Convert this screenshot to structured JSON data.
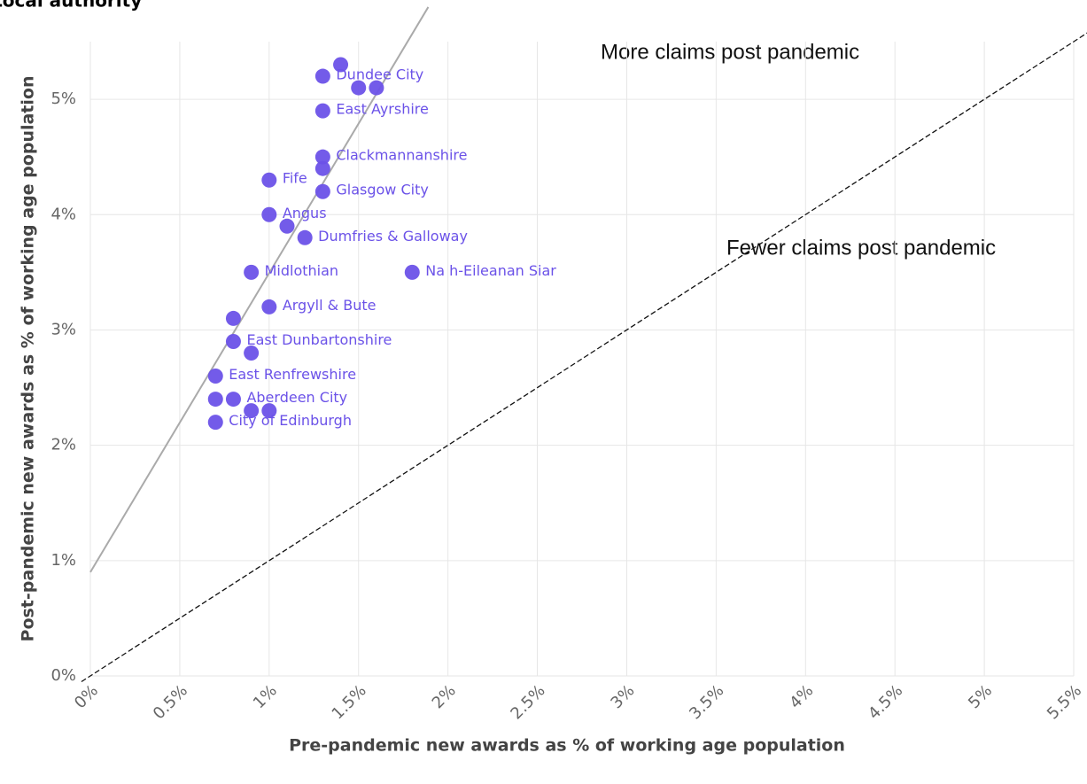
{
  "chart_data": {
    "type": "scatter",
    "title": "Local authority",
    "x_label": "Pre-pandemic new awards as % of working age population",
    "y_label": "Post-pandemic new awards as % of working age population",
    "annotations": [
      "More claims post pandemic",
      "Fewer claims post pandemic"
    ],
    "xlim": [
      0,
      5.5
    ],
    "ylim": [
      0,
      5.5
    ],
    "xticks": [
      {
        "value": 0,
        "label": "0%"
      },
      {
        "value": 0.5,
        "label": "0.5%"
      },
      {
        "value": 1,
        "label": "1%"
      },
      {
        "value": 1.5,
        "label": "1.5%"
      },
      {
        "value": 2,
        "label": "2%"
      },
      {
        "value": 2.5,
        "label": "2.5%"
      },
      {
        "value": 3,
        "label": "3%"
      },
      {
        "value": 3.5,
        "label": "3.5%"
      },
      {
        "value": 4,
        "label": "4%"
      },
      {
        "value": 4.5,
        "label": "4.5%"
      },
      {
        "value": 5,
        "label": "5%"
      },
      {
        "value": 5.5,
        "label": "5.5%"
      }
    ],
    "yticks": [
      {
        "value": 0,
        "label": "0%"
      },
      {
        "value": 1,
        "label": "1%"
      },
      {
        "value": 2,
        "label": "2%"
      },
      {
        "value": 3,
        "label": "3%"
      },
      {
        "value": 4,
        "label": "4%"
      },
      {
        "value": 5,
        "label": "5%"
      }
    ],
    "grid": true,
    "series": [
      {
        "color": "#6b52e8",
        "x": [
          1.4,
          1.3,
          1.5,
          1.6,
          1.3,
          1.3,
          1.3,
          1.0,
          1.3,
          1.0,
          1.1,
          1.2,
          0.9,
          1.8,
          1.0,
          0.8,
          0.8,
          0.9,
          0.7,
          0.7,
          0.8,
          0.9,
          1.0,
          0.7
        ],
        "values": [
          5.3,
          5.2,
          5.1,
          5.1,
          4.9,
          4.5,
          4.4,
          4.3,
          4.2,
          4.0,
          3.9,
          3.8,
          3.5,
          3.5,
          3.2,
          3.1,
          2.9,
          2.8,
          2.6,
          2.4,
          2.4,
          2.3,
          2.3,
          2.2
        ],
        "labels": [
          null,
          "Dundee City",
          null,
          null,
          "East Ayrshire",
          "Clackmannanshire",
          null,
          "Fife",
          "Glasgow City",
          "Angus",
          null,
          "Dumfries & Galloway",
          "Midlothian",
          "Na h-Eileanan Siar",
          "Argyll & Bute",
          null,
          "East Dunbartonshire",
          null,
          "East Renfrewshire",
          null,
          "Aberdeen City",
          null,
          null,
          "City of Edinburgh"
        ]
      }
    ],
    "trend_line": {
      "color": "#aaaaaa",
      "x": [
        0,
        1.89
      ],
      "values": [
        0.9,
        5.8
      ]
    },
    "parity_line": {
      "color": "#111111",
      "x": [
        -0.05,
        5.6
      ],
      "values": [
        -0.05,
        5.6
      ]
    }
  }
}
